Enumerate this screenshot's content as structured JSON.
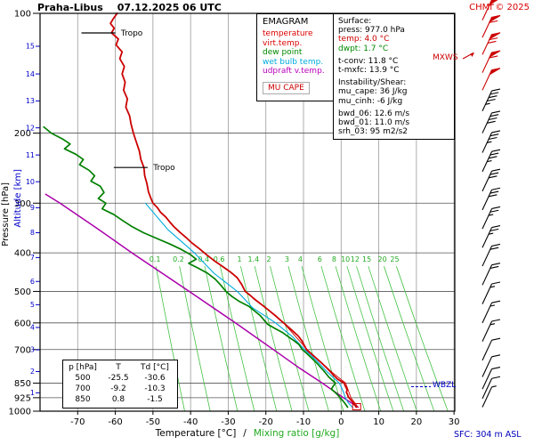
{
  "header": {
    "station": "Praha-Libus",
    "datetime": "07.12.2025 06 UTC",
    "copyright": "CHMI © 2025"
  },
  "legend": {
    "title": "EMAGRAM",
    "items": [
      {
        "label": "temperature",
        "color": "#dd0000"
      },
      {
        "label": "virt.temp.",
        "color": "#dd0000"
      },
      {
        "label": "dew point",
        "color": "#008800"
      },
      {
        "label": "wet bulb temp.",
        "color": "#00aadd"
      },
      {
        "label": "udpraft v.temp.",
        "color": "#bb00bb"
      }
    ],
    "cape": "MU CAPE"
  },
  "info": {
    "lines": [
      {
        "t": "Surface:",
        "c": "#000000"
      },
      {
        "t": "press: 977.0 hPa",
        "c": "#000000"
      },
      {
        "t": "temp: 4.0 °C",
        "c": "#cc0000"
      },
      {
        "t": "dwpt: 1.7 °C",
        "c": "#008800"
      },
      {
        "t": "",
        "c": "#000000"
      },
      {
        "t": "t-conv: 11.8 °C",
        "c": "#000000"
      },
      {
        "t": "t-mxfc: 13.9 °C",
        "c": "#000000"
      },
      {
        "t": "",
        "c": "#000000"
      },
      {
        "t": "Instability/Shear:",
        "c": "#000000"
      },
      {
        "t": "mu_cape: 36 J/kg",
        "c": "#000000"
      },
      {
        "t": "mu_cinh: -6 J/kg",
        "c": "#000000"
      },
      {
        "t": "",
        "c": "#000000"
      },
      {
        "t": "bwd_06: 12.6 m/s",
        "c": "#000000"
      },
      {
        "t": "bwd_01: 11.0 m/s",
        "c": "#000000"
      },
      {
        "t": "srh_03: 95 m2/s2",
        "c": "#000000"
      }
    ]
  },
  "table": {
    "header": [
      "p [hPa]",
      "T",
      "Td [°C]"
    ],
    "rows": [
      [
        "500",
        "-25.5",
        "-30.6"
      ],
      [
        "700",
        "-9.2",
        "-10.3"
      ],
      [
        "850",
        "0.8",
        "-1.5"
      ]
    ]
  },
  "labels": {
    "tropo": "Tropo",
    "mxws": "MXWS",
    "wbzl": "WBZL",
    "sfc": "SFC: 304 m ASL",
    "xlabel": "Temperature [°C]",
    "separator": "/",
    "mixing_label": "Mixing ratio [g/kg]",
    "pressure_label": "Pressure [hPa]",
    "altitude_label": "Altitude [km]"
  },
  "chart_data": {
    "type": "line",
    "title": "EMAGRAM sounding Praha-Libus 07.12.2025 06 UTC",
    "x_axis": {
      "label": "Temperature [°C]",
      "min": -80,
      "max": 30.2,
      "ticks": [
        -70,
        -60,
        -50,
        -40,
        -30,
        -20,
        -10,
        0,
        10,
        20,
        30
      ]
    },
    "y_axis": {
      "label": "Pressure [hPa]",
      "scale": "log",
      "min": 100,
      "max": 1000,
      "ticks": [
        100,
        200,
        300,
        400,
        500,
        600,
        700,
        850,
        925,
        1000
      ]
    },
    "altitude_ticks": [
      {
        "km": 1,
        "p": 899
      },
      {
        "km": 2,
        "p": 795
      },
      {
        "km": 3,
        "p": 701
      },
      {
        "km": 4,
        "p": 616
      },
      {
        "km": 5,
        "p": 540
      },
      {
        "km": 6,
        "p": 472
      },
      {
        "km": 7,
        "p": 411
      },
      {
        "km": 8,
        "p": 356
      },
      {
        "km": 9,
        "p": 308
      },
      {
        "km": 10,
        "p": 265
      },
      {
        "km": 11,
        "p": 227
      },
      {
        "km": 12,
        "p": 194
      },
      {
        "km": 13,
        "p": 166
      },
      {
        "km": 14,
        "p": 142
      },
      {
        "km": 15,
        "p": 121
      }
    ],
    "mixing_ratio": {
      "values": [
        0.1,
        0.2,
        0.4,
        0.6,
        1,
        1.4,
        2,
        3,
        4,
        6,
        8,
        10,
        12,
        15,
        20,
        25
      ],
      "line_color": "#44c144",
      "label_color": "#22aa22",
      "top_pressure": 432,
      "label_pressure": 420
    },
    "series": [
      {
        "name": "udpraft v.temp.",
        "color": "#aa00aa",
        "width": 1.5,
        "points": [
          [
            977,
            4.5
          ],
          [
            925,
            0.6
          ],
          [
            850,
            -5.0
          ],
          [
            780,
            -11.0
          ],
          [
            700,
            -18.0
          ],
          [
            600,
            -28.1
          ],
          [
            500,
            -40.4
          ],
          [
            400,
            -55.6
          ],
          [
            350,
            -64.3
          ],
          [
            300,
            -74.7
          ],
          [
            285,
            -78.5
          ]
        ]
      },
      {
        "name": "wet bulb temp.",
        "color": "#00aadd",
        "width": 1.1,
        "points": [
          [
            300,
            -52
          ],
          [
            350,
            -46
          ],
          [
            400,
            -39
          ],
          [
            450,
            -33.8
          ],
          [
            500,
            -27.6
          ],
          [
            550,
            -23.5
          ],
          [
            600,
            -17.4
          ],
          [
            650,
            -12.9
          ],
          [
            700,
            -9.7
          ],
          [
            750,
            -6.3
          ],
          [
            800,
            -3.5
          ],
          [
            850,
            -0.5
          ],
          [
            868,
            0
          ],
          [
            900,
            0.7
          ],
          [
            925,
            1.1
          ],
          [
            950,
            1.8
          ],
          [
            977,
            2.9
          ]
        ]
      },
      {
        "name": "virt.temp.",
        "color": "#cc0000",
        "width": 0.9,
        "points": [
          [
            500,
            -25.4
          ],
          [
            600,
            -15.3
          ],
          [
            700,
            -9.0
          ],
          [
            800,
            -2.3
          ],
          [
            850,
            1.2
          ],
          [
            925,
            2.6
          ],
          [
            977,
            4.5
          ]
        ]
      },
      {
        "name": "dew point",
        "color": "#008000",
        "width": 1.7,
        "points": [
          [
            193,
            -79
          ],
          [
            200,
            -77
          ],
          [
            207,
            -74
          ],
          [
            213,
            -72
          ],
          [
            219,
            -73.5
          ],
          [
            226,
            -70.5
          ],
          [
            233,
            -68.5
          ],
          [
            240,
            -69.5
          ],
          [
            248,
            -67
          ],
          [
            256,
            -65.5
          ],
          [
            264,
            -66.5
          ],
          [
            272,
            -64
          ],
          [
            282,
            -63
          ],
          [
            292,
            -64.5
          ],
          [
            300,
            -62.5
          ],
          [
            310,
            -63.5
          ],
          [
            320,
            -60.5
          ],
          [
            332,
            -58
          ],
          [
            344,
            -55.5
          ],
          [
            356,
            -52.5
          ],
          [
            368,
            -49
          ],
          [
            380,
            -45.5
          ],
          [
            392,
            -42.5
          ],
          [
            404,
            -40
          ],
          [
            415,
            -38.5
          ],
          [
            425,
            -40.5
          ],
          [
            437,
            -38
          ],
          [
            450,
            -35.5
          ],
          [
            465,
            -33.5
          ],
          [
            482,
            -32
          ],
          [
            500,
            -30.6
          ],
          [
            515,
            -29
          ],
          [
            530,
            -27
          ],
          [
            545,
            -24.5
          ],
          [
            560,
            -23
          ],
          [
            575,
            -21.5
          ],
          [
            590,
            -20.5
          ],
          [
            605,
            -19.5
          ],
          [
            620,
            -17.5
          ],
          [
            635,
            -15.5
          ],
          [
            650,
            -14
          ],
          [
            665,
            -12.5
          ],
          [
            680,
            -11.2
          ],
          [
            700,
            -10.3
          ],
          [
            715,
            -9.2
          ],
          [
            730,
            -8.2
          ],
          [
            745,
            -7.2
          ],
          [
            760,
            -6.3
          ],
          [
            775,
            -5.5
          ],
          [
            790,
            -4.7
          ],
          [
            805,
            -4
          ],
          [
            820,
            -3.3
          ],
          [
            835,
            -2.4
          ],
          [
            850,
            -1.5
          ],
          [
            865,
            -2.1
          ],
          [
            880,
            -2.6
          ],
          [
            895,
            -1.7
          ],
          [
            910,
            -0.9
          ],
          [
            925,
            -0.3
          ],
          [
            940,
            0.4
          ],
          [
            955,
            1.0
          ],
          [
            967,
            1.4
          ],
          [
            977,
            1.7
          ]
        ]
      },
      {
        "name": "temperature",
        "color": "#cc0000",
        "width": 1.8,
        "points": [
          [
            100,
            -59.5
          ],
          [
            103,
            -60.5
          ],
          [
            106,
            -61.3
          ],
          [
            109,
            -60.3
          ],
          [
            112,
            -61
          ],
          [
            116,
            -59.2
          ],
          [
            120,
            -59.8
          ],
          [
            125,
            -58.2
          ],
          [
            130,
            -58.8
          ],
          [
            136,
            -57.6
          ],
          [
            142,
            -58.2
          ],
          [
            149,
            -57.4
          ],
          [
            156,
            -57.8
          ],
          [
            164,
            -56.8
          ],
          [
            172,
            -57.2
          ],
          [
            181,
            -56.2
          ],
          [
            190,
            -55.8
          ],
          [
            200,
            -55.2
          ],
          [
            211,
            -54.4
          ],
          [
            222,
            -53.6
          ],
          [
            233,
            -53.2
          ],
          [
            244,
            -52.4
          ],
          [
            256,
            -52.2
          ],
          [
            268,
            -51.6
          ],
          [
            281,
            -51.2
          ],
          [
            294,
            -50.4
          ],
          [
            300,
            -50
          ],
          [
            308,
            -48.8
          ],
          [
            316,
            -48
          ],
          [
            325,
            -46.6
          ],
          [
            334,
            -45.6
          ],
          [
            344,
            -44.4
          ],
          [
            354,
            -43
          ],
          [
            366,
            -41.2
          ],
          [
            378,
            -39.6
          ],
          [
            391,
            -37.6
          ],
          [
            404,
            -35.8
          ],
          [
            418,
            -33.8
          ],
          [
            432,
            -31.6
          ],
          [
            447,
            -29.4
          ],
          [
            462,
            -27.6
          ],
          [
            481,
            -26.4
          ],
          [
            500,
            -25.5
          ],
          [
            510,
            -24.3
          ],
          [
            525,
            -22.8
          ],
          [
            541,
            -21
          ],
          [
            558,
            -19.2
          ],
          [
            575,
            -17.5
          ],
          [
            592,
            -16
          ],
          [
            610,
            -14.4
          ],
          [
            628,
            -12.9
          ],
          [
            647,
            -11.4
          ],
          [
            666,
            -10.4
          ],
          [
            683,
            -9.8
          ],
          [
            700,
            -9.2
          ],
          [
            718,
            -7.9
          ],
          [
            736,
            -6.6
          ],
          [
            755,
            -5.3
          ],
          [
            774,
            -4.1
          ],
          [
            793,
            -3
          ],
          [
            812,
            -2
          ],
          [
            831,
            -0.9
          ],
          [
            850,
            0.8
          ],
          [
            860,
            1.0
          ],
          [
            872,
            1.3
          ],
          [
            884,
            1.6
          ],
          [
            896,
            1.4
          ],
          [
            908,
            1.7
          ],
          [
            920,
            1.9
          ],
          [
            925,
            2.1
          ],
          [
            937,
            2.6
          ],
          [
            949,
            3.1
          ],
          [
            961,
            3.5
          ],
          [
            970,
            3.8
          ],
          [
            977,
            4.0
          ]
        ]
      }
    ],
    "tropopauses": [
      {
        "p": 112,
        "T": -61
      },
      {
        "p": 244,
        "T": -52.4
      }
    ],
    "surface_marker": {
      "p": 977,
      "T": 4.0
    },
    "wbzl_pressure": 868,
    "barb_x": 542,
    "wind_barbs": [
      {
        "p": 104,
        "spd": 55,
        "color": "#cc0000"
      },
      {
        "p": 115,
        "spd": 60,
        "color": "#cc0000"
      },
      {
        "p": 127,
        "spd": 70,
        "color": "#cc0000"
      },
      {
        "p": 141,
        "spd": 60,
        "color": "#cc0000"
      },
      {
        "p": 156,
        "spd": 50,
        "color": "#cc0000"
      },
      {
        "p": 176,
        "spd": 45,
        "color": "#000000"
      },
      {
        "p": 200,
        "spd": 40,
        "color": "#000000"
      },
      {
        "p": 224,
        "spd": 35,
        "color": "#000000"
      },
      {
        "p": 250,
        "spd": 35,
        "color": "#000000"
      },
      {
        "p": 280,
        "spd": 30,
        "color": "#000000"
      },
      {
        "p": 312,
        "spd": 30,
        "color": "#000000"
      },
      {
        "p": 348,
        "spd": 25,
        "color": "#000000"
      },
      {
        "p": 388,
        "spd": 25,
        "color": "#000000"
      },
      {
        "p": 432,
        "spd": 20,
        "color": "#000000"
      },
      {
        "p": 482,
        "spd": 20,
        "color": "#000000"
      },
      {
        "p": 538,
        "spd": 15,
        "color": "#000000"
      },
      {
        "p": 600,
        "spd": 15,
        "color": "#000000"
      },
      {
        "p": 668,
        "spd": 15,
        "color": "#000000"
      },
      {
        "p": 745,
        "spd": 10,
        "color": "#000000"
      },
      {
        "p": 820,
        "spd": 10,
        "color": "#000000"
      },
      {
        "p": 880,
        "spd": 10,
        "color": "#000000"
      },
      {
        "p": 930,
        "spd": 10,
        "color": "#000000"
      },
      {
        "p": 977,
        "spd": 5,
        "color": "#000000"
      }
    ]
  }
}
